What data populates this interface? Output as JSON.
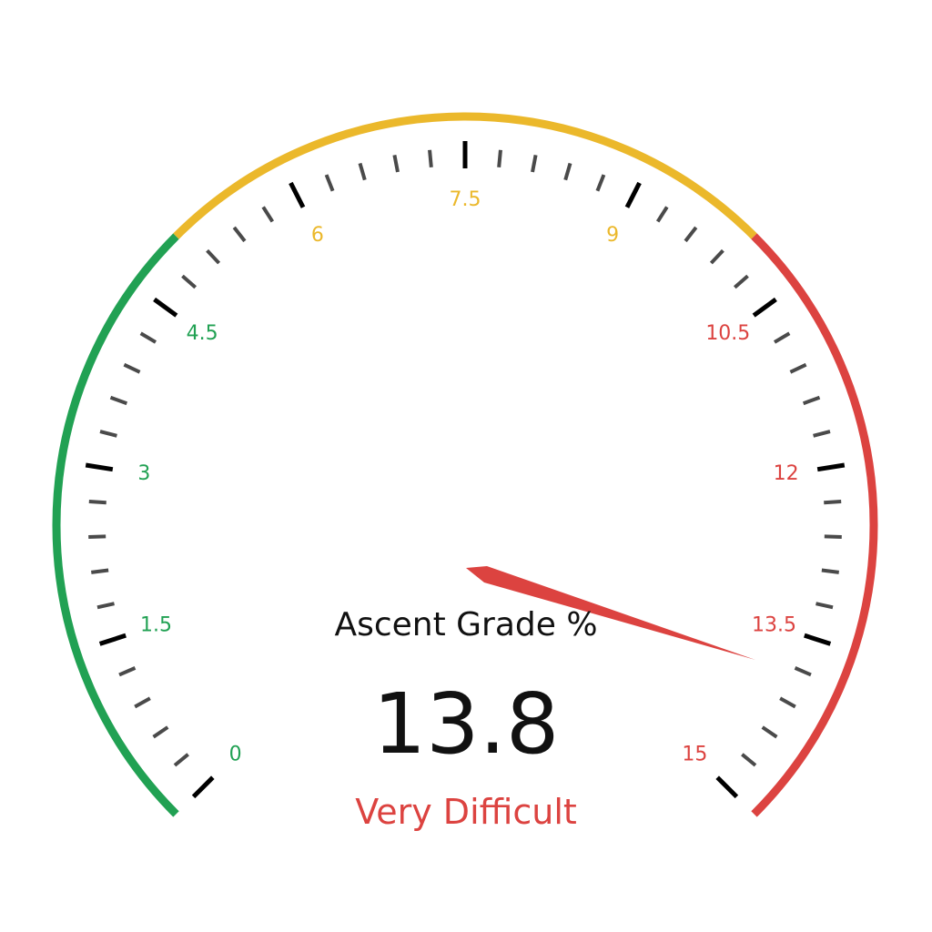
{
  "gauge": {
    "title": "Ascent Grade %",
    "value": 13.8,
    "value_text": "13.8",
    "status": "Very Difficult",
    "min": 0,
    "max": 15,
    "major_step": 1.5,
    "minor_per_major": 4,
    "tick_labels": [
      "0",
      "1.5",
      "3",
      "4.5",
      "6",
      "7.5",
      "9",
      "10.5",
      "12",
      "13.5",
      "15"
    ],
    "bands": [
      {
        "from": 0,
        "to": 5,
        "color": "#21a153"
      },
      {
        "from": 5,
        "to": 10,
        "color": "#ebb82b"
      },
      {
        "from": 10,
        "to": 15,
        "color": "#dc4340"
      }
    ],
    "needle_color": "#dc4340",
    "status_color": "#dc4340",
    "major_tick_color": "#000000",
    "minor_tick_color": "#4a4a4a"
  }
}
